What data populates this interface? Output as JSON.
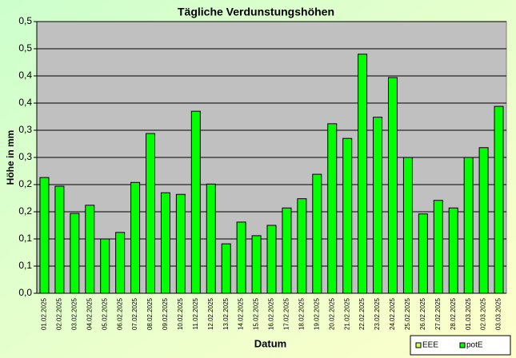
{
  "chart_data": {
    "type": "bar",
    "title": "Tägliche Verdunstungshöhen",
    "x_label": "Datum",
    "y_label": "Höhe in mm",
    "categories": [
      "01.02.2025",
      "02.02.2025",
      "03.02.2025",
      "04.02.2025",
      "05.02.2025",
      "06.02.2025",
      "07.02.2025",
      "08.02.2025",
      "09.02.2025",
      "10.02.2025",
      "11.02.2025",
      "12.02.2025",
      "13.02.2025",
      "14.02.2025",
      "15.02.2025",
      "16.02.2025",
      "17.02.2025",
      "18.02.2025",
      "19.02.2025",
      "20.02.2025",
      "21.02.2025",
      "22.02.2025",
      "23.02.2025",
      "24.02.2025",
      "25.02.2025",
      "26.02.2025",
      "27.02.2025",
      "28.02.2025",
      "01.03.2025",
      "02.03.2025",
      "03.03.2025"
    ],
    "series": [
      {
        "name": "EEE",
        "color": "#ccff66",
        "values": [
          null,
          null,
          null,
          null,
          null,
          null,
          null,
          null,
          null,
          null,
          null,
          null,
          null,
          null,
          null,
          null,
          null,
          null,
          null,
          null,
          null,
          null,
          null,
          null,
          null,
          null,
          null,
          null,
          null,
          null,
          null
        ]
      },
      {
        "name": "potE",
        "color": "#00ff00",
        "values": [
          0.213,
          0.197,
          0.147,
          0.162,
          0.1,
          0.112,
          0.204,
          0.294,
          0.185,
          0.182,
          0.335,
          0.201,
          0.091,
          0.131,
          0.106,
          0.125,
          0.157,
          0.174,
          0.219,
          0.312,
          0.285,
          0.44,
          0.324,
          0.397,
          0.25,
          0.146,
          0.171,
          0.157,
          0.25,
          0.268,
          0.344
        ]
      }
    ],
    "ylim": [
      0,
      0.5
    ],
    "yticks": [
      {
        "value": 0,
        "label": "0,0"
      },
      {
        "value": 0.05,
        "label": "0,1"
      },
      {
        "value": 0.1,
        "label": "0,1"
      },
      {
        "value": 0.15,
        "label": "0,2"
      },
      {
        "value": 0.2,
        "label": "0,2"
      },
      {
        "value": 0.25,
        "label": "0,3"
      },
      {
        "value": 0.3,
        "label": "0,3"
      },
      {
        "value": 0.35,
        "label": "0,4"
      },
      {
        "value": 0.4,
        "label": "0,4"
      },
      {
        "value": 0.45,
        "label": "0,5"
      },
      {
        "value": 0.5,
        "label": "0,5"
      }
    ],
    "grid": true
  }
}
